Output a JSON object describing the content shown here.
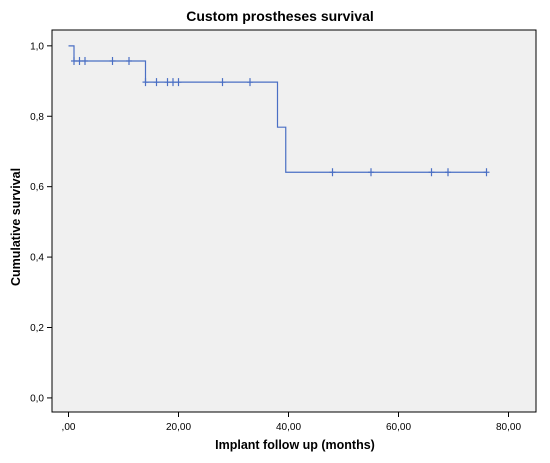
{
  "chart_data": {
    "type": "line",
    "title": "Custom prostheses survival",
    "xlabel": "Implant follow up (months)",
    "ylabel": "Cumulative survival",
    "xlim": [
      -3,
      85
    ],
    "ylim": [
      -0.04,
      1.045
    ],
    "x_ticks": [
      0,
      20,
      40,
      60,
      80
    ],
    "x_tick_labels": [
      ",00",
      "20,00",
      "40,00",
      "60,00",
      "80,00"
    ],
    "y_ticks": [
      0.0,
      0.2,
      0.4,
      0.6,
      0.8,
      1.0
    ],
    "y_tick_labels": [
      "0,0",
      "0,2",
      "0,4",
      "0,6",
      "0,8",
      "1,0"
    ],
    "grid": false,
    "series": [
      {
        "step": [
          [
            0,
            1.0
          ],
          [
            1,
            1.0
          ],
          [
            1,
            0.957
          ],
          [
            14,
            0.957
          ],
          [
            14,
            0.897
          ],
          [
            38,
            0.897
          ],
          [
            38,
            0.769
          ],
          [
            39.5,
            0.769
          ],
          [
            39.5,
            0.641
          ],
          [
            76,
            0.641
          ]
        ],
        "censored": [
          [
            1,
            0.957
          ],
          [
            2,
            0.957
          ],
          [
            3,
            0.957
          ],
          [
            8,
            0.957
          ],
          [
            11,
            0.957
          ],
          [
            14,
            0.897
          ],
          [
            16,
            0.897
          ],
          [
            18,
            0.897
          ],
          [
            19,
            0.897
          ],
          [
            20,
            0.897
          ],
          [
            28,
            0.897
          ],
          [
            33,
            0.897
          ],
          [
            48,
            0.641
          ],
          [
            55,
            0.641
          ],
          [
            66,
            0.641
          ],
          [
            69,
            0.641
          ],
          [
            76,
            0.641
          ]
        ]
      }
    ],
    "colors": {
      "plot_background": "#f0f0f0",
      "line": "#4a6fc4",
      "axis": "#000000"
    }
  }
}
